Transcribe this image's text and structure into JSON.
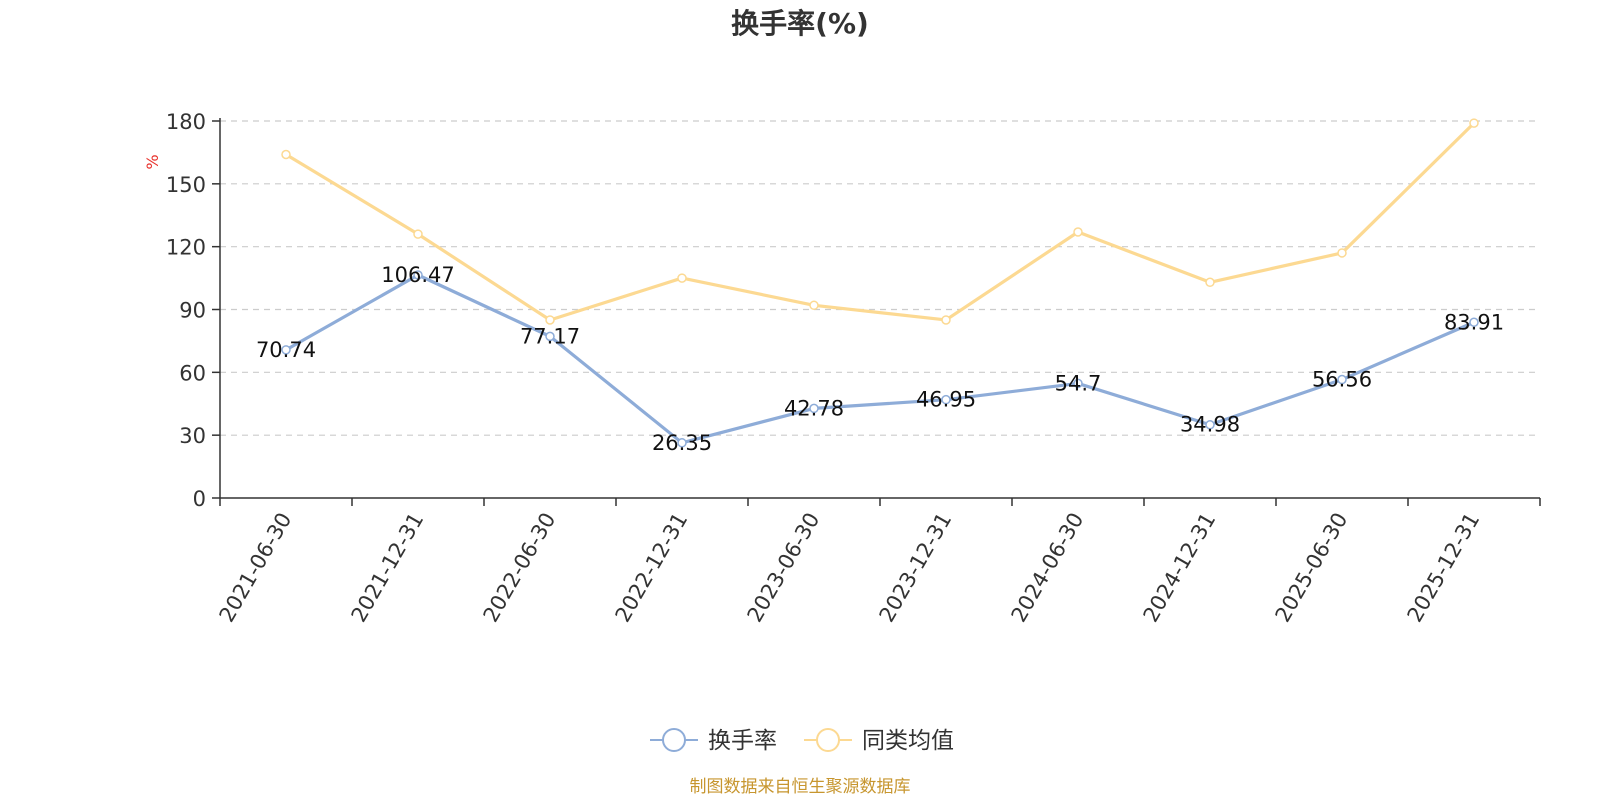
{
  "colors": {
    "series1": "#8eacd8",
    "series2": "#fcd992",
    "unit": "#e8302a",
    "source": "#c7962f",
    "axis": "#333333",
    "grid": "#cccccc"
  },
  "chart_data": {
    "type": "line",
    "title": "换手率(%)",
    "ylabel": "%",
    "xlabel": "",
    "ylim": [
      0,
      180
    ],
    "yticks": [
      0,
      30,
      60,
      90,
      120,
      150,
      180
    ],
    "grid": true,
    "categories": [
      "2021-06-30",
      "2021-12-31",
      "2022-06-30",
      "2022-12-31",
      "2023-06-30",
      "2023-12-31",
      "2024-06-30",
      "2024-12-31",
      "2025-06-30",
      "2025-12-31"
    ],
    "series": [
      {
        "name": "换手率",
        "values": [
          70.74,
          106.47,
          77.17,
          26.35,
          42.78,
          46.95,
          54.7,
          34.98,
          56.56,
          83.91
        ],
        "labels": [
          "70.74",
          "106.47",
          "77.17",
          "26.35",
          "42.78",
          "46.95",
          "54.7",
          "34.98",
          "56.56",
          "83.91"
        ]
      },
      {
        "name": "同类均值",
        "values": [
          164,
          126,
          85,
          105,
          92,
          85,
          127,
          103,
          117,
          179
        ]
      }
    ],
    "legend_position": "bottom-center"
  },
  "footer": {
    "source": "制图数据来自恒生聚源数据库"
  }
}
